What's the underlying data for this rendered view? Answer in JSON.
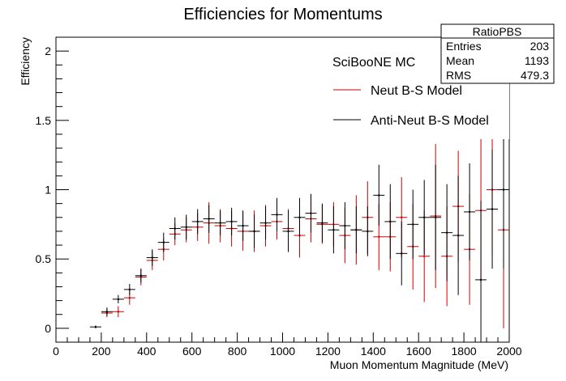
{
  "chart_data": {
    "type": "scatter",
    "title": "Efficiencies for Momentums",
    "xlabel": "Muon Momentum Magnitude (MeV)",
    "ylabel": "Efficiency",
    "xlim": [
      0,
      2000
    ],
    "ylim": [
      -0.1,
      2.1
    ],
    "x_ticks": [
      "0",
      "200",
      "400",
      "600",
      "800",
      "1000",
      "1200",
      "1400",
      "1600",
      "1800",
      "2000"
    ],
    "y_ticks": [
      "0",
      "0.5",
      "1",
      "1.5",
      "2"
    ],
    "grid": false,
    "legend_header": "SciBooNE MC",
    "legend_position": "top-right",
    "stats_box": {
      "title": "RatioPBS",
      "rows": [
        {
          "label": "Entries",
          "value": "203"
        },
        {
          "label": "Mean",
          "value": "1193"
        },
        {
          "label": "RMS",
          "value": "479.3"
        }
      ]
    },
    "series": [
      {
        "name": "Neut B-S Model",
        "color": "#cc0000",
        "x": [
          225,
          275,
          325,
          375,
          425,
          475,
          525,
          575,
          625,
          675,
          725,
          775,
          825,
          875,
          925,
          975,
          1025,
          1075,
          1125,
          1175,
          1225,
          1275,
          1325,
          1375,
          1425,
          1475,
          1525,
          1575,
          1625,
          1675,
          1725,
          1775,
          1825,
          1875,
          1925,
          1975
        ],
        "y": [
          0.11,
          0.12,
          0.22,
          0.37,
          0.49,
          0.57,
          0.68,
          0.71,
          0.73,
          0.76,
          0.74,
          0.72,
          0.7,
          0.7,
          0.74,
          0.77,
          0.72,
          0.67,
          0.79,
          0.75,
          0.75,
          0.67,
          0.71,
          0.8,
          0.66,
          0.66,
          0.8,
          0.59,
          0.52,
          0.81,
          0.52,
          0.88,
          0.57,
          0.85,
          1.0,
          0.71
        ],
        "yerr": [
          0.03,
          0.04,
          0.05,
          0.06,
          0.07,
          0.08,
          0.08,
          0.09,
          0.1,
          0.15,
          0.12,
          0.13,
          0.14,
          0.15,
          0.15,
          0.13,
          0.14,
          0.16,
          0.17,
          0.14,
          0.16,
          0.2,
          0.25,
          0.26,
          0.24,
          0.25,
          0.29,
          0.31,
          0.33,
          0.52,
          0.36,
          0.4,
          0.4,
          0.52,
          0.47,
          0.71
        ],
        "xerr": 25
      },
      {
        "name": "Anti-Neut B-S Model",
        "color": "#000000",
        "x": [
          175,
          225,
          275,
          325,
          375,
          425,
          475,
          525,
          575,
          625,
          675,
          725,
          775,
          825,
          875,
          925,
          975,
          1025,
          1075,
          1125,
          1175,
          1225,
          1275,
          1325,
          1375,
          1425,
          1475,
          1525,
          1575,
          1625,
          1675,
          1725,
          1775,
          1825,
          1875,
          1925,
          1975
        ],
        "y": [
          0.01,
          0.12,
          0.21,
          0.28,
          0.38,
          0.51,
          0.62,
          0.72,
          0.73,
          0.77,
          0.79,
          0.76,
          0.77,
          0.74,
          0.7,
          0.76,
          0.82,
          0.7,
          0.8,
          0.83,
          0.76,
          0.71,
          0.74,
          0.71,
          0.7,
          0.96,
          0.77,
          0.54,
          0.75,
          0.8,
          0.8,
          0.69,
          0.67,
          0.84,
          0.35,
          0.86,
          1.0
        ],
        "yerr": [
          0.01,
          0.03,
          0.03,
          0.04,
          0.05,
          0.06,
          0.07,
          0.08,
          0.09,
          0.09,
          0.1,
          0.09,
          0.1,
          0.11,
          0.12,
          0.12,
          0.12,
          0.15,
          0.14,
          0.14,
          0.14,
          0.17,
          0.17,
          0.17,
          0.18,
          0.22,
          0.27,
          0.23,
          0.25,
          0.27,
          0.38,
          0.35,
          0.43,
          0.35,
          0.57,
          0.43,
          0.57
        ],
        "xerr": 25
      }
    ]
  }
}
